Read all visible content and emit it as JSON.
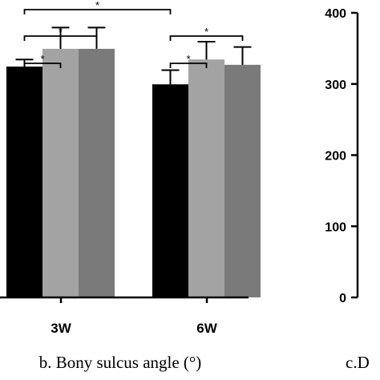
{
  "captions": {
    "left": "b. Bony sulcus angle (°)",
    "right": "c.D"
  },
  "chart_data": [
    {
      "panel": "b",
      "type": "bar",
      "title": "",
      "categories": [
        "3W",
        "6W"
      ],
      "series": [
        {
          "color": "#000000",
          "values": [
            130,
            120
          ],
          "errors": [
            4,
            8
          ]
        },
        {
          "color": "#a3a3a3",
          "values": [
            140,
            134
          ],
          "errors": [
            12,
            10
          ]
        },
        {
          "color": "#7a7a7a",
          "values": [
            140,
            131
          ],
          "errors": [
            12,
            10
          ]
        }
      ],
      "significance": [
        {
          "label": "*",
          "from": [
            0,
            0
          ],
          "to": [
            1,
            0
          ]
        },
        {
          "label": "*",
          "from": [
            0,
            0
          ],
          "to": [
            0,
            2
          ]
        },
        {
          "label": "*",
          "from": [
            0,
            0
          ],
          "to": [
            0,
            1
          ]
        },
        {
          "label": "*",
          "from": [
            1,
            0
          ],
          "to": [
            1,
            2
          ]
        },
        {
          "label": "*",
          "from": [
            1,
            0
          ],
          "to": [
            1,
            1
          ]
        }
      ],
      "ylim": [
        0,
        200
      ],
      "xlabel": "",
      "ylabel": ""
    },
    {
      "panel": "c",
      "type": "bar",
      "title": "",
      "y_ticks": [
        "0",
        "100",
        "200",
        "300",
        "400"
      ],
      "ylim": [
        0,
        400
      ]
    }
  ]
}
